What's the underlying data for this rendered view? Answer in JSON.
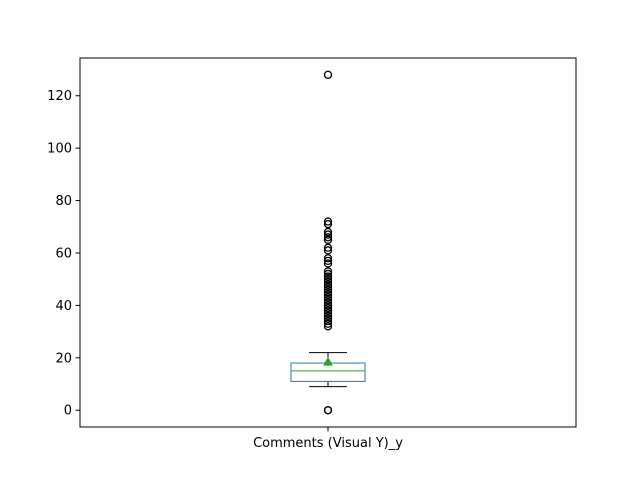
{
  "chart_data": {
    "type": "box",
    "category": "Comments (Visual Y)_y",
    "ylim": [
      -6.4,
      134.4
    ],
    "yticks": [
      0,
      20,
      40,
      60,
      80,
      100,
      120
    ],
    "box": {
      "whisker_low": 9,
      "q1": 11,
      "median": 15,
      "q3": 18,
      "whisker_high": 22,
      "mean": 18.5
    },
    "outliers": [
      0,
      0,
      32,
      33,
      34,
      35,
      36,
      37,
      38,
      39,
      40,
      41,
      42,
      43,
      44,
      45,
      46,
      47,
      48,
      49,
      50,
      51,
      52,
      53,
      56,
      57,
      58,
      61,
      62,
      65,
      66,
      67,
      68,
      71,
      72,
      128
    ],
    "colors": {
      "box": "#1f77b4",
      "median": "#2ca02c",
      "mean": "#2ca02c",
      "outlier": "#000000"
    },
    "grid": false,
    "legend": "none"
  }
}
